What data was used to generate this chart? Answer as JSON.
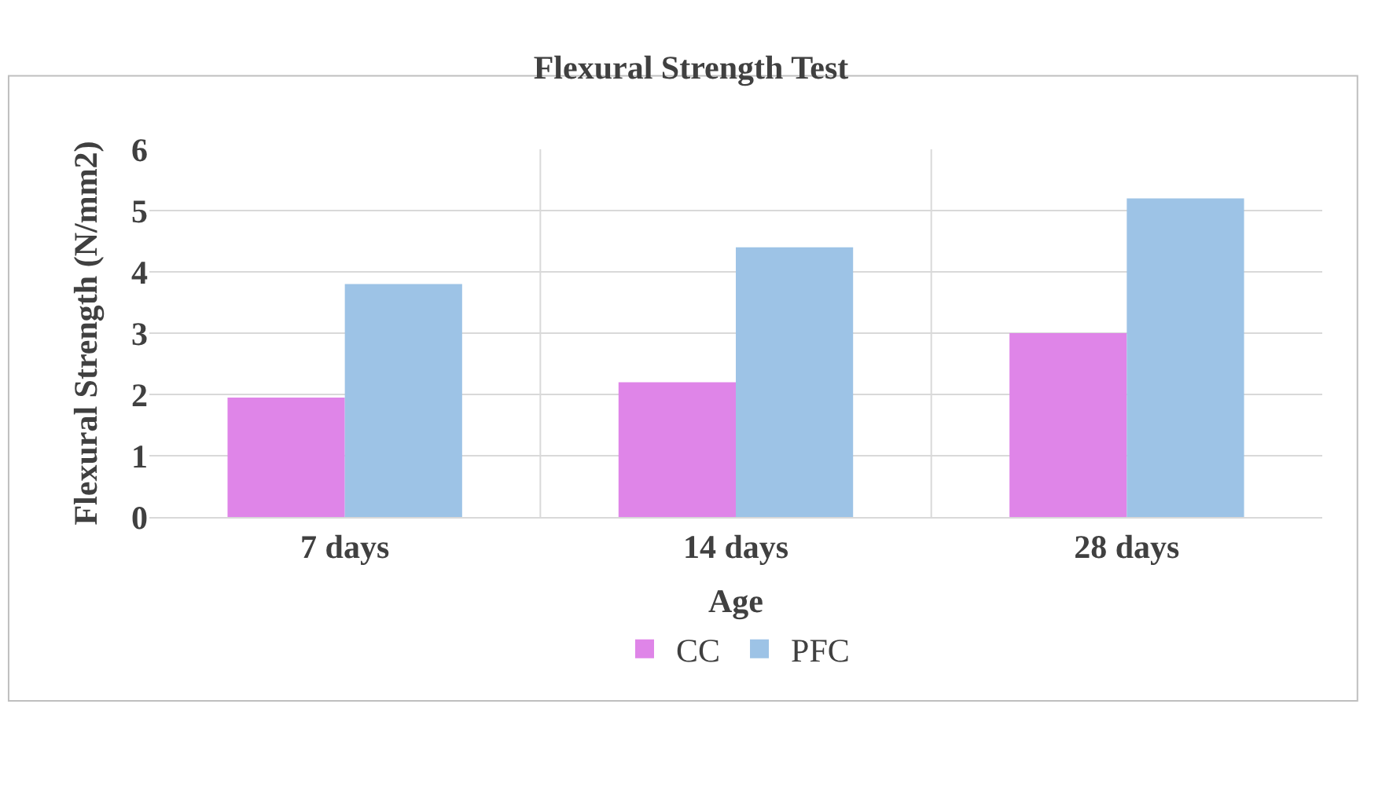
{
  "chart_data": {
    "type": "bar",
    "title": "Flexural Strength Test",
    "xlabel": "Age",
    "ylabel": "Flexural Strength (N/mm2)",
    "categories": [
      "7 days",
      "14 days",
      "28 days"
    ],
    "series": [
      {
        "name": "CC",
        "color": "#df85e8",
        "values": [
          1.95,
          2.2,
          3.0
        ]
      },
      {
        "name": "PFC",
        "color": "#9dc3e6",
        "values": [
          3.8,
          4.4,
          5.2
        ]
      }
    ],
    "ylim": [
      0,
      6
    ],
    "yticks": [
      0,
      1,
      2,
      3,
      4,
      5,
      6
    ],
    "grid": true,
    "legend": "bottom"
  }
}
